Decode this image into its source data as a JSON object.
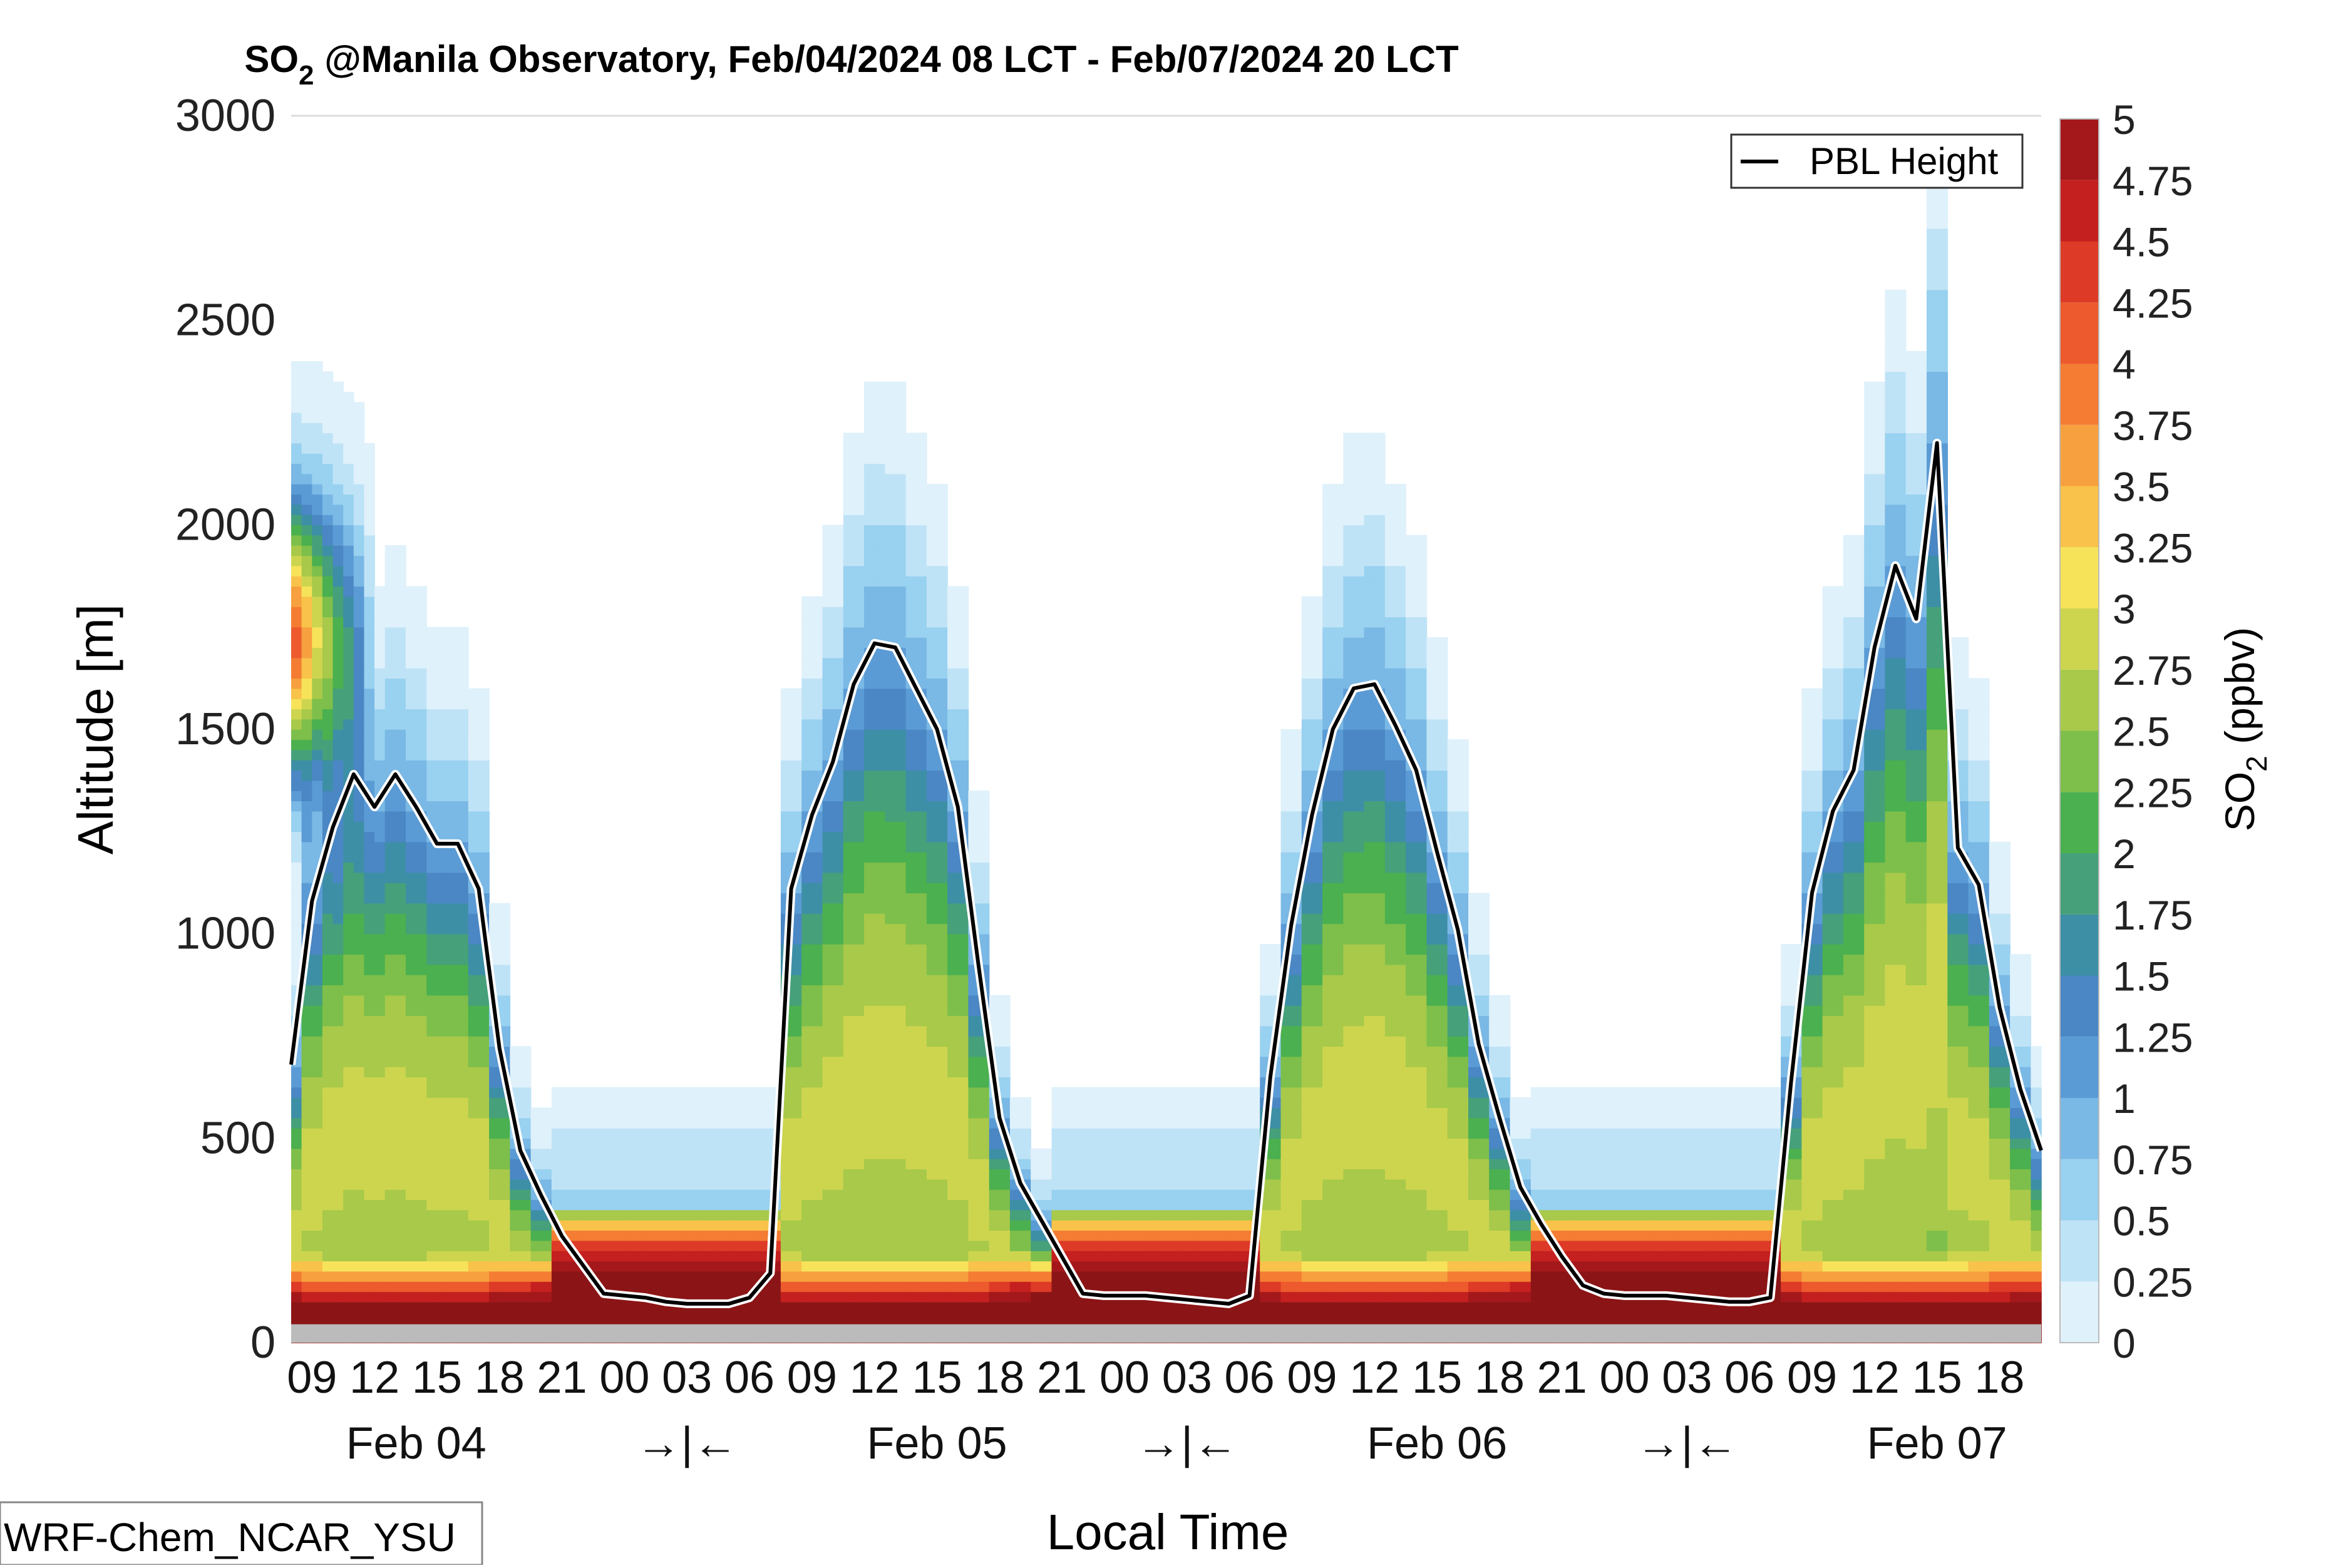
{
  "chart_data": {
    "type": "area",
    "title_main": "SO",
    "title_sub": "2",
    "title_rest": " @Manila Observatory, Feb/04/2024 08 LCT - Feb/07/2024 20 LCT",
    "xlabel": "Local Time",
    "ylabel": "Altitude [m]",
    "ylim": [
      0,
      3000
    ],
    "yticks": [
      "0",
      "500",
      "1000",
      "1500",
      "2000",
      "2500",
      "3000"
    ],
    "xticks": [
      "09",
      "12",
      "15",
      "18",
      "21",
      "00",
      "03",
      "06",
      "09",
      "12",
      "15",
      "18",
      "21",
      "00",
      "03",
      "06",
      "09",
      "12",
      "15",
      "18",
      "21",
      "00",
      "03",
      "06",
      "09",
      "12",
      "15",
      "18"
    ],
    "day_labels": [
      "Feb 04",
      "→|←",
      "Feb 05",
      "→|←",
      "Feb 06",
      "→|←",
      "Feb 07"
    ],
    "model_label": "WRF-Chem_NCAR_YSU",
    "legend": "PBL Height",
    "colorbar": {
      "label_main": "SO",
      "label_sub": "2",
      "label_rest": " (ppbv)",
      "ticks": [
        "0",
        "0.25",
        "0.5",
        "0.75",
        "1",
        "1.25",
        "1.5",
        "1.75",
        "2",
        "2.25",
        "2.5",
        "2.75",
        "3",
        "3.25",
        "3.5",
        "3.75",
        "4",
        "4.25",
        "4.5",
        "4.75",
        "5"
      ],
      "colors": [
        "#ffffff",
        "#dff1fb",
        "#bfe3f6",
        "#99d1f0",
        "#7ab8e5",
        "#5b9bd5",
        "#4a87c4",
        "#3d8fa6",
        "#46a07a",
        "#4bb04f",
        "#7dbf4a",
        "#a8c94a",
        "#cdd54f",
        "#f7e35a",
        "#f9c24a",
        "#f7a03f",
        "#f47c33",
        "#ec5a2d",
        "#dd3a27",
        "#c4201f",
        "#a4181b",
        "#8b1516"
      ]
    },
    "pbl_hours": [
      0,
      1,
      2,
      3,
      4,
      5,
      6,
      7,
      8,
      9,
      10,
      11,
      12,
      13,
      14,
      15,
      16,
      17,
      18,
      19,
      20,
      21,
      22,
      23,
      24,
      25,
      26,
      27,
      28,
      29,
      30,
      31,
      32,
      33,
      34,
      35,
      36,
      37,
      38,
      39,
      40,
      41,
      42,
      43,
      44,
      45,
      46,
      47,
      48,
      49,
      50,
      51,
      52,
      53,
      54,
      55,
      56,
      57,
      58,
      59,
      60,
      61,
      62,
      63,
      64,
      65,
      66,
      67,
      68,
      69,
      70,
      71,
      72,
      73,
      74,
      75,
      76,
      77,
      78,
      79,
      80,
      81,
      82,
      83,
      84
    ],
    "pbl_height": [
      680,
      1080,
      1260,
      1390,
      1310,
      1390,
      1310,
      1220,
      1220,
      1110,
      720,
      470,
      360,
      260,
      190,
      120,
      115,
      110,
      100,
      95,
      95,
      95,
      110,
      170,
      1110,
      1290,
      1420,
      1610,
      1710,
      1700,
      1600,
      1500,
      1310,
      920,
      550,
      390,
      300,
      210,
      120,
      115,
      115,
      115,
      110,
      105,
      100,
      95,
      115,
      650,
      1020,
      1290,
      1500,
      1600,
      1610,
      1510,
      1400,
      1200,
      1010,
      730,
      550,
      380,
      290,
      210,
      140,
      120,
      115,
      115,
      115,
      110,
      105,
      100,
      100,
      110,
      640,
      1100,
      1300,
      1400,
      1700,
      1900,
      1770,
      2200,
      1210,
      1120,
      820,
      620,
      470
    ],
    "so2_profile_note": ""
  }
}
